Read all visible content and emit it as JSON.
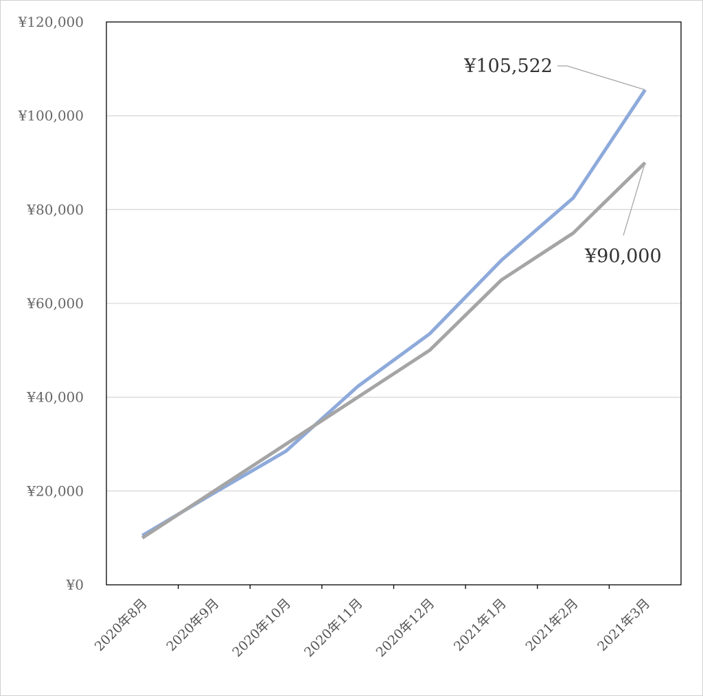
{
  "chart_data": {
    "type": "line",
    "categories": [
      "2020年8月",
      "2020年9月",
      "2020年10月",
      "2020年11月",
      "2020年12月",
      "2021年1月",
      "2021年2月",
      "2021年3月"
    ],
    "series": [
      {
        "values": [
          10500,
          19600,
          28500,
          42300,
          53500,
          69200,
          82500,
          105522
        ],
        "color": "#8eaadb"
      },
      {
        "values": [
          10000,
          20000,
          30000,
          40000,
          50000,
          65000,
          75000,
          90000
        ],
        "color": "#a5a5a5"
      }
    ],
    "ylim": [
      0,
      120000
    ],
    "yticks": [
      "¥0",
      "¥20,000",
      "¥40,000",
      "¥60,000",
      "¥80,000",
      "¥100,000",
      "¥120,000"
    ],
    "grid": true,
    "legend": "none",
    "data_labels": [
      "¥105,522",
      "¥90,000"
    ]
  }
}
